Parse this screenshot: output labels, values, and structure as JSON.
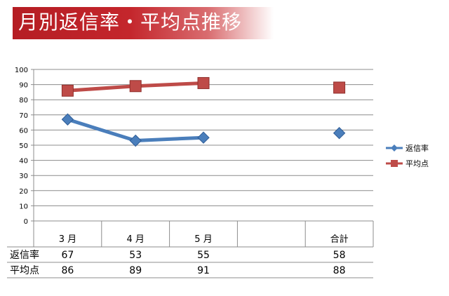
{
  "title": "月別返信率・平均点推移",
  "colors": {
    "title_red": "#c4262c",
    "series1": "#4a7ebb",
    "series2": "#be4b48"
  },
  "chart_data": {
    "type": "line",
    "categories": [
      "3 月",
      "4 月",
      "5 月",
      "",
      "合計"
    ],
    "ylim": [
      0,
      100
    ],
    "yticks": [
      "0",
      "10",
      "20",
      "30",
      "40",
      "50",
      "60",
      "70",
      "80",
      "90",
      "100"
    ],
    "grid": true,
    "legend_position": "right",
    "series": [
      {
        "name": "返信率",
        "marker": "diamond",
        "color": "#4a7ebb",
        "values": [
          67,
          53,
          55,
          null,
          58
        ]
      },
      {
        "name": "平均点",
        "marker": "square",
        "color": "#be4b48",
        "values": [
          86,
          89,
          91,
          null,
          88
        ]
      }
    ]
  },
  "table": {
    "rows": [
      {
        "label": "返信率",
        "values": [
          "67",
          "53",
          "55",
          "",
          "58"
        ]
      },
      {
        "label": "平均点",
        "values": [
          "86",
          "89",
          "91",
          "",
          "88"
        ]
      }
    ]
  }
}
